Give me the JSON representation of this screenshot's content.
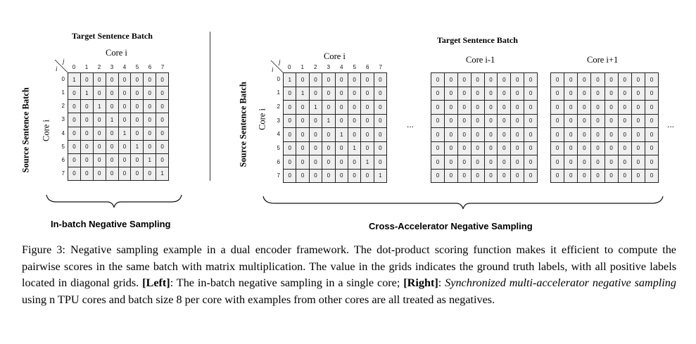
{
  "left_panel": {
    "title": "Target Sentence Batch",
    "core_label_top": "Core i",
    "source_label": "Source Sentence Batch",
    "core_label_side": "Core i",
    "col_axis": "j",
    "row_axis": "i",
    "col_ticks": [
      "0",
      "1",
      "2",
      "3",
      "4",
      "5",
      "6",
      "7"
    ],
    "row_ticks": [
      "0",
      "1",
      "2",
      "3",
      "4",
      "5",
      "6",
      "7"
    ],
    "bottom_label": "In-batch Negative Sampling",
    "matrix": [
      [
        "1",
        "0",
        "0",
        "0",
        "0",
        "0",
        "0",
        "0"
      ],
      [
        "0",
        "1",
        "0",
        "0",
        "0",
        "0",
        "0",
        "0"
      ],
      [
        "0",
        "0",
        "1",
        "0",
        "0",
        "0",
        "0",
        "0"
      ],
      [
        "0",
        "0",
        "0",
        "1",
        "0",
        "0",
        "0",
        "0"
      ],
      [
        "0",
        "0",
        "0",
        "0",
        "1",
        "0",
        "0",
        "0"
      ],
      [
        "0",
        "0",
        "0",
        "0",
        "0",
        "1",
        "0",
        "0"
      ],
      [
        "0",
        "0",
        "0",
        "0",
        "0",
        "0",
        "1",
        "0"
      ],
      [
        "0",
        "0",
        "0",
        "0",
        "0",
        "0",
        "0",
        "1"
      ]
    ]
  },
  "right_panel": {
    "title": "Target Sentence Batch",
    "source_label": "Source Sentence Batch",
    "core_label_side": "Core i",
    "col_axis": "j",
    "row_axis": "i",
    "col_ticks": [
      "0",
      "1",
      "2",
      "3",
      "4",
      "5",
      "6",
      "7"
    ],
    "row_ticks": [
      "0",
      "1",
      "2",
      "3",
      "4",
      "5",
      "6",
      "7"
    ],
    "ellipsis": "...",
    "bottom_label": "Cross-Accelerator Negative Sampling",
    "grids": [
      {
        "label": "Core i",
        "matrix": [
          [
            "1",
            "0",
            "0",
            "0",
            "0",
            "0",
            "0",
            "0"
          ],
          [
            "0",
            "1",
            "0",
            "0",
            "0",
            "0",
            "0",
            "0"
          ],
          [
            "0",
            "0",
            "1",
            "0",
            "0",
            "0",
            "0",
            "0"
          ],
          [
            "0",
            "0",
            "0",
            "1",
            "0",
            "0",
            "0",
            "0"
          ],
          [
            "0",
            "0",
            "0",
            "0",
            "1",
            "0",
            "0",
            "0"
          ],
          [
            "0",
            "0",
            "0",
            "0",
            "0",
            "1",
            "0",
            "0"
          ],
          [
            "0",
            "0",
            "0",
            "0",
            "0",
            "0",
            "1",
            "0"
          ],
          [
            "0",
            "0",
            "0",
            "0",
            "0",
            "0",
            "0",
            "1"
          ]
        ]
      },
      {
        "label": "Core i-1",
        "matrix": [
          [
            "0",
            "0",
            "0",
            "0",
            "0",
            "0",
            "0",
            "0"
          ],
          [
            "0",
            "0",
            "0",
            "0",
            "0",
            "0",
            "0",
            "0"
          ],
          [
            "0",
            "0",
            "0",
            "0",
            "0",
            "0",
            "0",
            "0"
          ],
          [
            "0",
            "0",
            "0",
            "0",
            "0",
            "0",
            "0",
            "0"
          ],
          [
            "0",
            "0",
            "0",
            "0",
            "0",
            "0",
            "0",
            "0"
          ],
          [
            "0",
            "0",
            "0",
            "0",
            "0",
            "0",
            "0",
            "0"
          ],
          [
            "0",
            "0",
            "0",
            "0",
            "0",
            "0",
            "0",
            "0"
          ],
          [
            "0",
            "0",
            "0",
            "0",
            "0",
            "0",
            "0",
            "0"
          ]
        ]
      },
      {
        "label": "Core i+1",
        "matrix": [
          [
            "0",
            "0",
            "0",
            "0",
            "0",
            "0",
            "0",
            "0"
          ],
          [
            "0",
            "0",
            "0",
            "0",
            "0",
            "0",
            "0",
            "0"
          ],
          [
            "0",
            "0",
            "0",
            "0",
            "0",
            "0",
            "0",
            "0"
          ],
          [
            "0",
            "0",
            "0",
            "0",
            "0",
            "0",
            "0",
            "0"
          ],
          [
            "0",
            "0",
            "0",
            "0",
            "0",
            "0",
            "0",
            "0"
          ],
          [
            "0",
            "0",
            "0",
            "0",
            "0",
            "0",
            "0",
            "0"
          ],
          [
            "0",
            "0",
            "0",
            "0",
            "0",
            "0",
            "0",
            "0"
          ],
          [
            "0",
            "0",
            "0",
            "0",
            "0",
            "0",
            "0",
            "0"
          ]
        ]
      }
    ]
  },
  "caption": {
    "prefix": "Figure 3: Negative sampling example in a dual encoder framework. The dot-product scoring function makes it efficient to compute the pairwise scores in the same batch with matrix multiplication. The value in the grids indicates the ground truth labels, with all positive labels located in diagonal grids. ",
    "left_tag": "[Left]",
    "left_text": ": The in-batch negative sampling in a single core; ",
    "right_tag": "[Right]",
    "right_sep": ": ",
    "right_italic": "Synchronized multi-accelerator negative sampling",
    "suffix": " using n TPU cores and batch size 8 per core with examples from other cores are all treated as negatives."
  }
}
